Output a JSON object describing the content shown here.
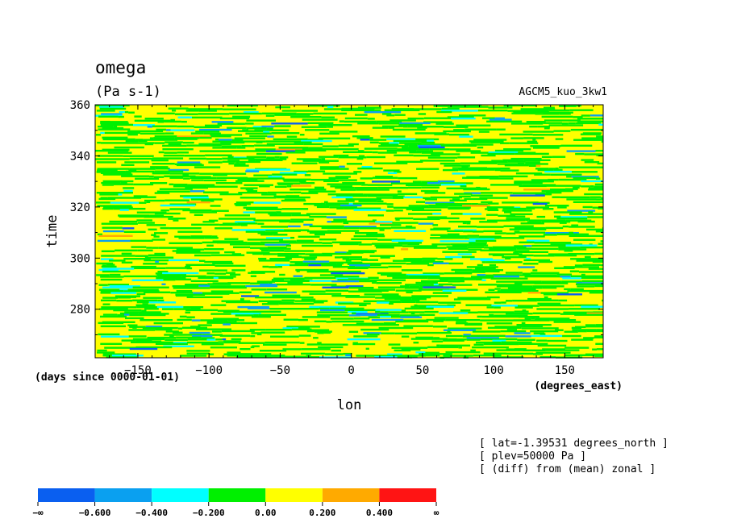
{
  "chart_data": {
    "type": "heatmap",
    "title": "omega",
    "units": "(Pa s-1)",
    "dataset": "AGCM5_kuo_3kw1",
    "xlabel": "lon",
    "ylabel": "time",
    "x_units": "(degrees_east)",
    "y_units": "(days since 0000-01-01)",
    "xlim": [
      -180,
      177
    ],
    "ylim": [
      261,
      360
    ],
    "x_ticks": [
      -150,
      -100,
      -50,
      0,
      50,
      100,
      150
    ],
    "y_ticks": [
      280,
      300,
      320,
      340,
      360
    ],
    "annotations": [
      "[ lat=-1.39531 degrees_north ]",
      "[ plev=50000 Pa ]",
      "[ (diff) from (mean) zonal ]"
    ],
    "colorbar": {
      "labels": [
        "-∞",
        "-0.600",
        "-0.400",
        "-0.200",
        "0.00",
        "0.200",
        "0.400",
        "∞"
      ],
      "colors": [
        "#0a5ff0",
        "#0aa0f0",
        "#00ffff",
        "#00f000",
        "#ffff00",
        "#ffaa00",
        "#ff1414"
      ]
    },
    "field_description": "omega anomaly from zonal mean; mostly -0.2..0.2 (green/yellow) with scattered negative cyan/blue streaks and rare orange/red spots"
  }
}
